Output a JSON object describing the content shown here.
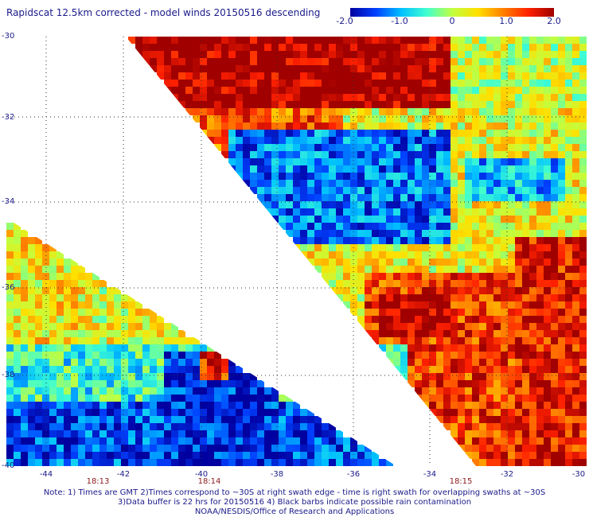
{
  "title": "Rapidscat 12.5km corrected - model winds 20150516 descending",
  "colorbar": {
    "labels": [
      "-2.0",
      "-1.0",
      "0",
      "1.0",
      "2.0"
    ],
    "stops": [
      "#0000a0",
      "#0040ff",
      "#00c0ff",
      "#40ffd0",
      "#c0ff40",
      "#ffe000",
      "#ff8000",
      "#ff2000",
      "#a00000"
    ]
  },
  "lat_labels": [
    "-30",
    "-32",
    "-34",
    "-36",
    "-38",
    "-40"
  ],
  "lon_labels": [
    "-44",
    "-42",
    "-40",
    "-38",
    "-36",
    "-34",
    "-32",
    "-30"
  ],
  "time_labels": [
    "18:13",
    "18:14",
    "18:15"
  ],
  "notes": {
    "line1": "Note: 1) Times are GMT 2)Times correspond to ~30S at right swath edge - time is right swath for overlapping swaths at ~30S",
    "line2": "3)Data buffer is 22 hrs for 20150516 4) Black barbs indicate possible rain contamination",
    "line3": "NOAA/NESDIS/Office of Research and Applications"
  },
  "colors": {
    "text": "#1a1a8a",
    "time_text": "#8b1a1a",
    "grid": "#333333"
  }
}
